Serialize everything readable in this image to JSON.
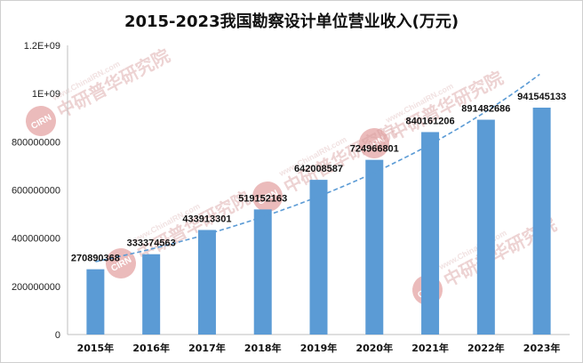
{
  "chart_data": {
    "type": "bar",
    "title": "2015-2023我国勘察设计单位营业收入(万元)",
    "categories": [
      "2015年",
      "2016年",
      "2017年",
      "2018年",
      "2019年",
      "2020年",
      "2021年",
      "2022年",
      "2023年"
    ],
    "values": [
      270890368,
      333374563,
      433913301,
      519152163,
      642008587,
      724966801,
      840161206,
      891482686,
      941545133
    ],
    "data_labels": [
      "270890368",
      "333374563",
      "433913301",
      "519152163",
      "642008587",
      "724966801",
      "840161206",
      "891482686",
      "941545133"
    ],
    "y_ticks": [
      0,
      200000000,
      400000000,
      600000000,
      800000000,
      1000000000,
      1200000000
    ],
    "y_tick_labels": [
      "0",
      "200000000",
      "400000000",
      "600000000",
      "800000000",
      "1E+09",
      "1.2E+09"
    ],
    "ylim": [
      0,
      1200000000
    ],
    "trendline": "exponential",
    "trend_end_value": 1080000000,
    "bar_color": "#5b9bd5",
    "trend_color": "#5b9bd5",
    "grid": false,
    "legend": "none"
  },
  "watermark": {
    "logo_text": "CIRN",
    "brand_text": "中研普华研究院",
    "url_text": "www.ChinaIRN.com",
    "color": "#d46a6a"
  }
}
